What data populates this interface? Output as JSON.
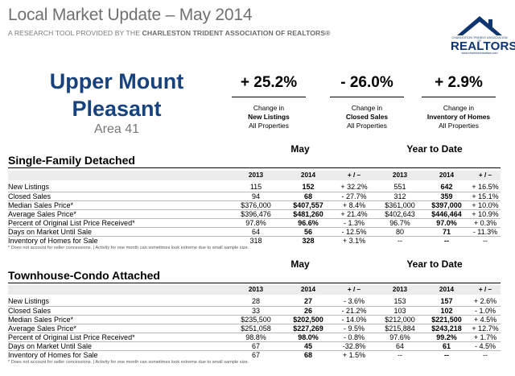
{
  "header": {
    "title": "Local Market Update – May 2014",
    "subtitle_prefix": "A RESEARCH TOOL PROVIDED BY THE",
    "subtitle_org": "CHARLESTON TRIDENT ASSOCIATION OF REALTORS®"
  },
  "logo": {
    "small_text": "CHARLESTON TRIDENT ASSOCIATION OF",
    "brand": "REALTORS",
    "url": "www.charlestonrealtors.com",
    "color": "#0f3570"
  },
  "area": {
    "name_line1": "Upper Mount",
    "name_line2": "Pleasant",
    "number": "Area 41"
  },
  "kpis": [
    {
      "value": "+ 25.2%",
      "line1": "Change in",
      "line2": "New Listings",
      "line3": "All Properties"
    },
    {
      "value": "- 26.0%",
      "line1": "Change in",
      "line2": "Closed Sales",
      "line3": "All Properties"
    },
    {
      "value": "+ 2.9%",
      "line1": "Change in",
      "line2": "Inventory of Homes",
      "line3": "All Properties"
    }
  ],
  "group_headers": {
    "may": "May",
    "ytd": "Year to Date"
  },
  "columns": [
    "2013",
    "2014",
    "+ / –",
    "2013",
    "2014",
    "+ / –"
  ],
  "single_family": {
    "title": "Single-Family Detached",
    "rows": [
      {
        "label": "New Listings",
        "v": [
          "115",
          "152",
          "+ 32.2%",
          "551",
          "642",
          "+ 16.5%"
        ]
      },
      {
        "label": "Closed Sales",
        "v": [
          "94",
          "68",
          "- 27.7%",
          "312",
          "359",
          "+ 15.1%"
        ]
      },
      {
        "label": "Median Sales Price*",
        "v": [
          "$376,000",
          "$407,557",
          "+ 8.4%",
          "$361,000",
          "$397,000",
          "+ 10.0%"
        ]
      },
      {
        "label": "Average Sales Price*",
        "v": [
          "$396,476",
          "$481,260",
          "+ 21.4%",
          "$402,643",
          "$446,464",
          "+ 10.9%"
        ]
      },
      {
        "label": "Percent of Original List Price Received*",
        "v": [
          "97.8%",
          "96.6%",
          "- 1.3%",
          "96.7%",
          "97.0%",
          "+ 0.3%"
        ]
      },
      {
        "label": "Days on Market Until Sale",
        "v": [
          "64",
          "56",
          "- 12.5%",
          "80",
          "71",
          "- 11.3%"
        ]
      },
      {
        "label": "Inventory of Homes for Sale",
        "v": [
          "318",
          "328",
          "+ 3.1%",
          "--",
          "--",
          "--"
        ]
      }
    ],
    "footnote": "* Does not account for seller concessions.  |  Activity for one month can sometimes look extreme due to small sample size."
  },
  "townhouse": {
    "title": "Townhouse-Condo Attached",
    "rows": [
      {
        "label": "New Listings",
        "v": [
          "28",
          "27",
          "- 3.6%",
          "153",
          "157",
          "+ 2.6%"
        ]
      },
      {
        "label": "Closed Sales",
        "v": [
          "33",
          "26",
          "- 21.2%",
          "103",
          "102",
          "- 1.0%"
        ]
      },
      {
        "label": "Median Sales Price*",
        "v": [
          "$235,500",
          "$202,500",
          "- 14.0%",
          "$212,000",
          "$221,500",
          "+ 4.5%"
        ]
      },
      {
        "label": "Average Sales Price*",
        "v": [
          "$251,058",
          "$227,269",
          "- 9.5%",
          "$215,884",
          "$243,218",
          "+ 12.7%"
        ]
      },
      {
        "label": "Percent of Original List Price Received*",
        "v": [
          "98.8%",
          "98.0%",
          "- 0.8%",
          "97.6%",
          "99.2%",
          "+ 1.7%"
        ]
      },
      {
        "label": "Days on Market Until Sale",
        "v": [
          "67",
          "45",
          "-32.8%",
          "64",
          "61",
          "- 4.5%"
        ]
      },
      {
        "label": "Inventory of Homes for Sale",
        "v": [
          "67",
          "68",
          "+ 1.5%",
          "--",
          "--",
          "--"
        ]
      }
    ],
    "footnote": "* Does not account for seller concessions.  |  Activity for one month can sometimes look extreme due to small sample size."
  }
}
